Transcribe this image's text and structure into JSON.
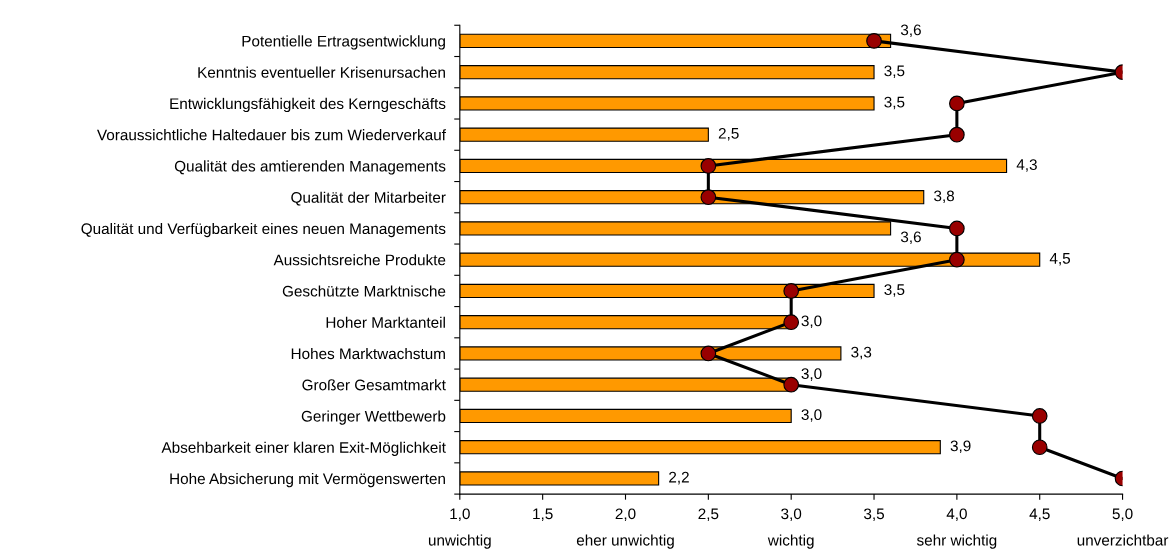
{
  "chart_data": {
    "type": "bar",
    "orientation": "horizontal",
    "categories": [
      "Potentielle Ertragsentwicklung",
      "Kenntnis eventueller Krisenursachen",
      "Entwicklungsfähigkeit des Kerngeschäfts",
      "Voraussichtliche Haltedauer bis zum Wiederverkauf",
      "Qualität des amtierenden Managements",
      "Qualität der Mitarbeiter",
      "Qualität und Verfügbarkeit eines neuen Managements",
      "Aussichtsreiche Produkte",
      "Geschützte Marktnische",
      "Hoher Marktanteil",
      "Hohes Marktwachstum",
      "Großer Gesamtmarkt",
      "Geringer Wettbewerb",
      "Absehbarkeit einer klaren Exit-Möglichkeit",
      "Hohe Absicherung mit Vermögenswerten"
    ],
    "series": [
      {
        "color": "#ff9900",
        "values": [
          3.6,
          3.5,
          3.5,
          2.5,
          4.3,
          3.8,
          3.6,
          4.5,
          3.5,
          3.0,
          3.3,
          3.0,
          3.0,
          3.9,
          2.2
        ],
        "value_labels": [
          "3,6",
          "3,5",
          "3,5",
          "2,5",
          "4,3",
          "3,8",
          "3,6",
          "4,5",
          "3,5",
          "3,0",
          "3,3",
          "3,0",
          "3,0",
          "3,9",
          "2,2"
        ]
      },
      {
        "type": "line",
        "color": "#000000",
        "colors": [
          "#990000",
          "#990000",
          "#990000",
          "#990000",
          "#990000",
          "#990000",
          "#990000",
          "#990000",
          "#990000",
          "#990000",
          "#990000",
          "#990000",
          "#990000",
          "#990000",
          "#990000"
        ],
        "marker": "circle",
        "line_style": "solid",
        "values": [
          3.5,
          5.0,
          4.0,
          4.0,
          2.5,
          2.5,
          4.0,
          4.0,
          3.0,
          3.0,
          2.5,
          3.0,
          4.5,
          4.5,
          5.0
        ]
      }
    ],
    "xlim": [
      1.0,
      5.0
    ],
    "xticks": [
      {
        "value": 1.0,
        "label": "1,0\nunwichtig"
      },
      {
        "value": 1.5,
        "label": "1,5"
      },
      {
        "value": 2.0,
        "label": "2,0\neher unwichtig"
      },
      {
        "value": 2.5,
        "label": "2,5"
      },
      {
        "value": 3.0,
        "label": "3,0\nwichtig"
      },
      {
        "value": 3.5,
        "label": "3,5"
      },
      {
        "value": 4.0,
        "label": "4,0\nsehr wichtig"
      },
      {
        "value": 4.5,
        "label": "4,5"
      },
      {
        "value": 5.0,
        "label": "5,0\nunverzichtbar"
      }
    ],
    "grid": false
  }
}
